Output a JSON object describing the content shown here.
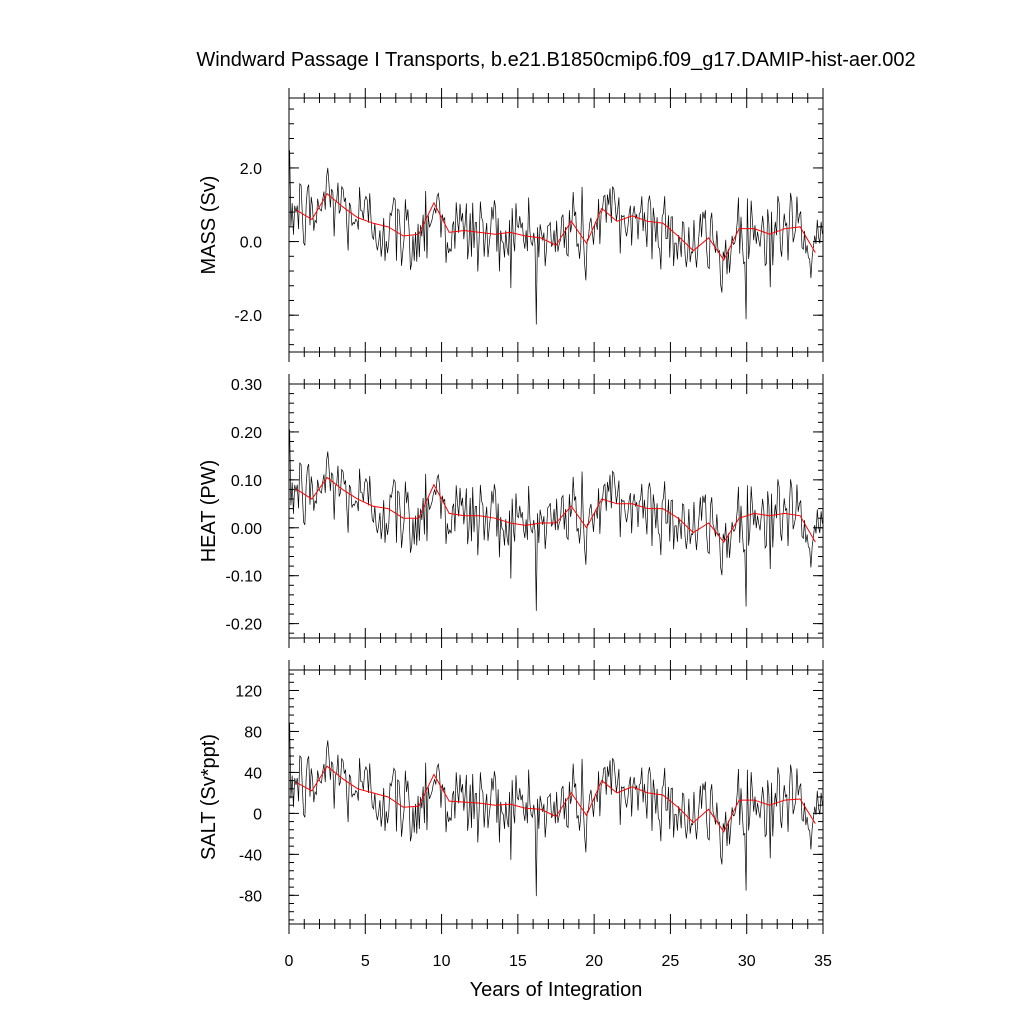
{
  "chart_data": {
    "type": "line",
    "title": "Windward Passage I Transports, b.e21.B1850cmip6.f09_g17.DAMIP-hist-aer.002",
    "xlabel": "Years of Integration",
    "xlim": [
      0,
      35
    ],
    "x_ticks": [
      "0",
      "5",
      "10",
      "15",
      "20",
      "25",
      "30",
      "35"
    ],
    "series_colors": {
      "monthly": "#000000",
      "annual": "#ff0000"
    },
    "panels": [
      {
        "ylabel": "MASS (Sv)",
        "ylim": [
          -3.0,
          3.9
        ],
        "y_ticks": [
          -2.0,
          0.0,
          2.0
        ],
        "y_tick_labels": [
          "-2.0",
          "0.0",
          "2.0"
        ],
        "annual_x": [
          0.5,
          1.5,
          2.5,
          3.5,
          4.5,
          5.5,
          6.5,
          7.5,
          8.5,
          9.5,
          10.5,
          11.5,
          12.5,
          13.5,
          14.5,
          15.5,
          16.5,
          17.5,
          18.5,
          19.5,
          20.5,
          21.5,
          22.5,
          23.5,
          24.5,
          25.5,
          26.5,
          27.5,
          28.5,
          29.5,
          30.5,
          31.5,
          32.5,
          33.5,
          34.5
        ],
        "annual_y": [
          0.85,
          0.6,
          1.3,
          0.95,
          0.65,
          0.5,
          0.4,
          0.15,
          0.2,
          1.05,
          0.25,
          0.3,
          0.25,
          0.2,
          0.25,
          0.15,
          0.1,
          -0.1,
          0.55,
          -0.05,
          0.9,
          0.55,
          0.7,
          0.55,
          0.5,
          0.15,
          -0.25,
          0.1,
          -0.5,
          0.35,
          0.35,
          0.2,
          0.35,
          0.4,
          -0.3
        ]
      },
      {
        "ylabel": "HEAT (PW)",
        "ylim": [
          -0.23,
          0.3
        ],
        "y_ticks": [
          -0.2,
          -0.1,
          0.0,
          0.1,
          0.2,
          0.3
        ],
        "y_tick_labels": [
          "-0.20",
          "-0.10",
          "0.00",
          "0.10",
          "0.20",
          "0.30"
        ],
        "annual_x": [
          0.5,
          1.5,
          2.5,
          3.5,
          4.5,
          5.5,
          6.5,
          7.5,
          8.5,
          9.5,
          10.5,
          11.5,
          12.5,
          13.5,
          14.5,
          15.5,
          16.5,
          17.5,
          18.5,
          19.5,
          20.5,
          21.5,
          22.5,
          23.5,
          24.5,
          25.5,
          26.5,
          27.5,
          28.5,
          29.5,
          30.5,
          31.5,
          32.5,
          33.5,
          34.5
        ],
        "annual_y": [
          0.08,
          0.06,
          0.105,
          0.08,
          0.06,
          0.045,
          0.04,
          0.02,
          0.02,
          0.09,
          0.03,
          0.025,
          0.025,
          0.02,
          0.01,
          0.005,
          0.01,
          0.01,
          0.045,
          0.0,
          0.06,
          0.05,
          0.05,
          0.04,
          0.04,
          0.02,
          -0.01,
          0.01,
          -0.03,
          0.02,
          0.03,
          0.025,
          0.03,
          0.025,
          -0.03
        ]
      },
      {
        "ylabel": "SALT (Sv*ppt)",
        "ylim": [
          -108,
          140
        ],
        "y_ticks": [
          -80,
          -40,
          0,
          40,
          80,
          120
        ],
        "y_tick_labels": [
          "-80",
          "-40",
          "0",
          "40",
          "80",
          "120"
        ],
        "annual_x": [
          0.5,
          1.5,
          2.5,
          3.5,
          4.5,
          5.5,
          6.5,
          7.5,
          8.5,
          9.5,
          10.5,
          11.5,
          12.5,
          13.5,
          14.5,
          15.5,
          16.5,
          17.5,
          18.5,
          19.5,
          20.5,
          21.5,
          22.5,
          23.5,
          24.5,
          25.5,
          26.5,
          27.5,
          28.5,
          29.5,
          30.5,
          31.5,
          32.5,
          33.5,
          34.5
        ],
        "annual_y": [
          30,
          22,
          46,
          34,
          24,
          20,
          16,
          6,
          7,
          38,
          12,
          11,
          10,
          8,
          9,
          5,
          4,
          -3,
          20,
          -2,
          32,
          20,
          26,
          20,
          18,
          6,
          -9,
          4,
          -18,
          13,
          13,
          8,
          13,
          14,
          -10
        ]
      }
    ]
  }
}
